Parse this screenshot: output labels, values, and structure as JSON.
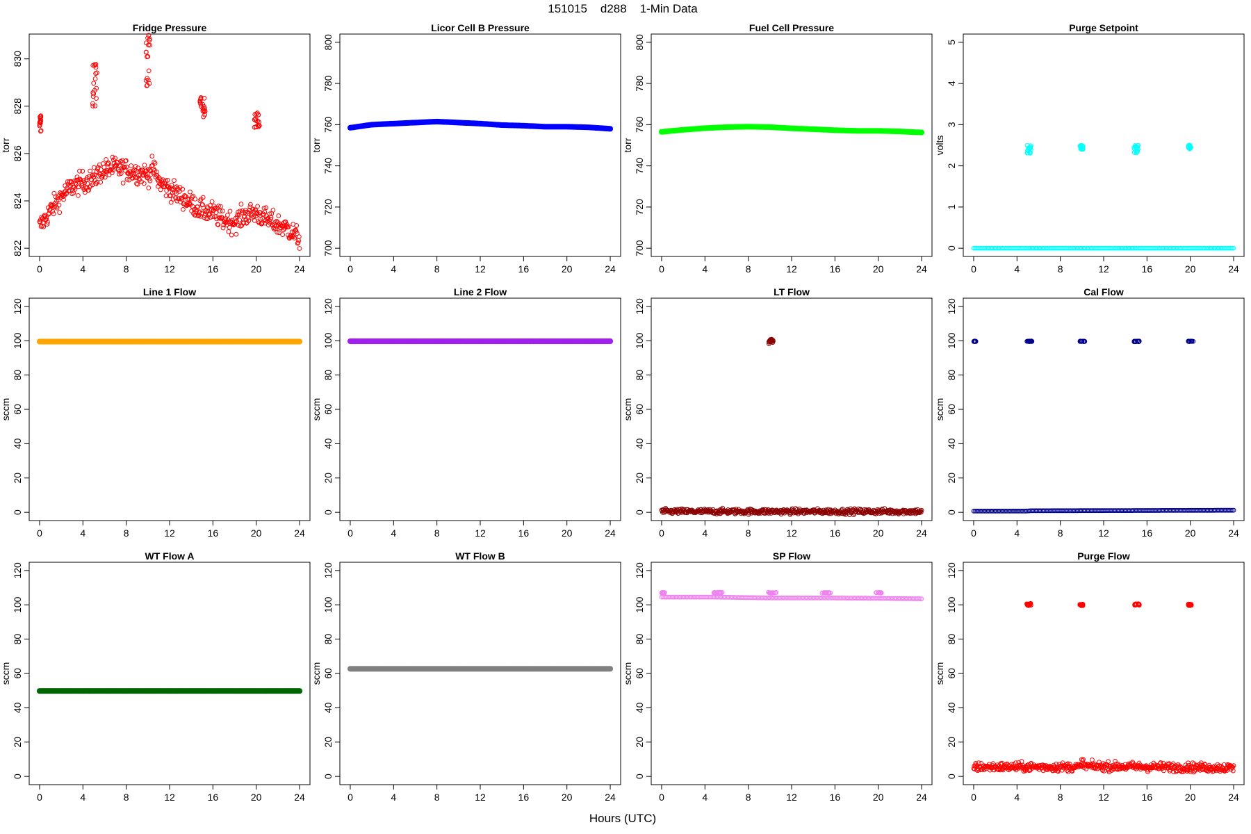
{
  "title": "151015    d288    1-Min Data",
  "xlabel": "Hours (UTC)",
  "chart_data": [
    {
      "type": "scatter",
      "title": "Fridge Pressure",
      "ylabel": "torr",
      "color": "#ff0000",
      "marker": "open-circle",
      "xlim": [
        0,
        24
      ],
      "ylim": [
        822,
        830.7
      ],
      "xticks": [
        0,
        4,
        8,
        12,
        16,
        20,
        24
      ],
      "yticks": [
        822,
        824,
        826,
        828,
        830
      ],
      "shape": "bands",
      "baseline": [
        [
          0,
          822.9
        ],
        [
          1,
          823.6
        ],
        [
          2,
          824.2
        ],
        [
          3,
          824.6
        ],
        [
          4,
          824.8
        ],
        [
          5,
          824.9
        ],
        [
          5.5,
          825.2
        ],
        [
          6,
          825.3
        ],
        [
          7,
          825.4
        ],
        [
          8,
          825.3
        ],
        [
          9,
          825.2
        ],
        [
          10,
          825.1
        ],
        [
          10.5,
          825.4
        ],
        [
          11,
          824.8
        ],
        [
          12,
          824.5
        ],
        [
          13,
          824.2
        ],
        [
          14,
          823.9
        ],
        [
          15,
          823.6
        ],
        [
          16,
          823.5
        ],
        [
          17,
          823.2
        ],
        [
          18,
          823.1
        ],
        [
          19,
          823.4
        ],
        [
          20,
          823.5
        ],
        [
          21,
          823.2
        ],
        [
          22,
          823.0
        ],
        [
          23,
          822.8
        ],
        [
          24,
          822.4
        ]
      ],
      "noise": 0.45,
      "clusters": [
        {
          "x": [
            0,
            0.15
          ],
          "y": [
            826.8,
            827.6
          ]
        },
        {
          "x": [
            4.9,
            5.3
          ],
          "y": [
            828.0,
            829.8
          ]
        },
        {
          "x": [
            9.8,
            10.2
          ],
          "y": [
            828.6,
            831.0
          ]
        },
        {
          "x": [
            14.8,
            15.3
          ],
          "y": [
            827.5,
            828.4
          ]
        },
        {
          "x": [
            19.8,
            20.3
          ],
          "y": [
            827.1,
            827.8
          ]
        }
      ]
    },
    {
      "type": "scatter",
      "title": "Licor Cell B Pressure",
      "ylabel": "torr",
      "color": "#0000ff",
      "marker": "filled-circle",
      "xlim": [
        0,
        24
      ],
      "ylim": [
        700,
        800
      ],
      "xticks": [
        0,
        4,
        8,
        12,
        16,
        20,
        24
      ],
      "yticks": [
        700,
        720,
        740,
        760,
        780,
        800
      ],
      "shape": "line",
      "baseline": [
        [
          0,
          758.5
        ],
        [
          2,
          760
        ],
        [
          4,
          760.5
        ],
        [
          6,
          761
        ],
        [
          8,
          761.5
        ],
        [
          10,
          761
        ],
        [
          12,
          760.5
        ],
        [
          14,
          759.8
        ],
        [
          16,
          759.5
        ],
        [
          18,
          759
        ],
        [
          20,
          759
        ],
        [
          22,
          758.7
        ],
        [
          24,
          758
        ]
      ],
      "clusters": []
    },
    {
      "type": "scatter",
      "title": "Fuel Cell Pressure",
      "ylabel": "torr",
      "color": "#00ff00",
      "marker": "filled-circle",
      "xlim": [
        0,
        24
      ],
      "ylim": [
        700,
        800
      ],
      "xticks": [
        0,
        4,
        8,
        12,
        16,
        20,
        24
      ],
      "yticks": [
        700,
        720,
        740,
        760,
        780,
        800
      ],
      "shape": "line",
      "baseline": [
        [
          0,
          756.5
        ],
        [
          2,
          757.5
        ],
        [
          4,
          758.3
        ],
        [
          6,
          758.8
        ],
        [
          8,
          759
        ],
        [
          10,
          758.8
        ],
        [
          12,
          758.2
        ],
        [
          14,
          757.8
        ],
        [
          16,
          757.3
        ],
        [
          18,
          757
        ],
        [
          20,
          757
        ],
        [
          22,
          756.7
        ],
        [
          24,
          756.2
        ]
      ],
      "clusters": []
    },
    {
      "type": "scatter",
      "title": "Purge Setpoint",
      "ylabel": "volts",
      "color": "#00ffff",
      "marker": "open-circle",
      "xlim": [
        0,
        24
      ],
      "ylim": [
        0,
        5
      ],
      "xticks": [
        0,
        4,
        8,
        12,
        16,
        20,
        24
      ],
      "yticks": [
        0,
        1,
        2,
        3,
        4,
        5
      ],
      "shape": "line",
      "baseline": [
        [
          0,
          0
        ],
        [
          24,
          0
        ]
      ],
      "clusters": [
        {
          "x": [
            4.9,
            5.3
          ],
          "y": [
            2.3,
            2.5
          ]
        },
        {
          "x": [
            9.8,
            10.1
          ],
          "y": [
            2.4,
            2.5
          ]
        },
        {
          "x": [
            14.8,
            15.2
          ],
          "y": [
            2.3,
            2.5
          ]
        },
        {
          "x": [
            19.8,
            20.1
          ],
          "y": [
            2.4,
            2.5
          ]
        }
      ]
    },
    {
      "type": "scatter",
      "title": "Line 1 Flow",
      "ylabel": "sccm",
      "color": "#ffa500",
      "marker": "filled-circle",
      "xlim": [
        0,
        24
      ],
      "ylim": [
        0,
        120
      ],
      "xticks": [
        0,
        4,
        8,
        12,
        16,
        20,
        24
      ],
      "yticks": [
        0,
        20,
        40,
        60,
        80,
        100,
        120
      ],
      "shape": "line",
      "baseline": [
        [
          0,
          99.5
        ],
        [
          24,
          99.5
        ]
      ],
      "clusters": []
    },
    {
      "type": "scatter",
      "title": "Line 2 Flow",
      "ylabel": "sccm",
      "color": "#a020f0",
      "marker": "filled-circle",
      "xlim": [
        0,
        24
      ],
      "ylim": [
        0,
        120
      ],
      "xticks": [
        0,
        4,
        8,
        12,
        16,
        20,
        24
      ],
      "yticks": [
        0,
        20,
        40,
        60,
        80,
        100,
        120
      ],
      "shape": "line",
      "baseline": [
        [
          0,
          99.7
        ],
        [
          24,
          99.7
        ]
      ],
      "clusters": []
    },
    {
      "type": "scatter",
      "title": "LT Flow",
      "ylabel": "sccm",
      "color": "#8b0000",
      "marker": "open-circle",
      "xlim": [
        0,
        24
      ],
      "ylim": [
        0,
        120
      ],
      "xticks": [
        0,
        4,
        8,
        12,
        16,
        20,
        24
      ],
      "yticks": [
        0,
        20,
        40,
        60,
        80,
        100,
        120
      ],
      "shape": "bands",
      "baseline": [
        [
          0,
          0.5
        ],
        [
          24,
          0.5
        ]
      ],
      "noise": 1.5,
      "clusters": [
        {
          "x": [
            9.9,
            10.3
          ],
          "y": [
            98,
            101
          ]
        }
      ]
    },
    {
      "type": "scatter",
      "title": "Cal Flow",
      "ylabel": "sccm",
      "color": "#00008b",
      "marker": "open-circle",
      "xlim": [
        0,
        24
      ],
      "ylim": [
        0,
        120
      ],
      "xticks": [
        0,
        4,
        8,
        12,
        16,
        20,
        24
      ],
      "yticks": [
        0,
        20,
        40,
        60,
        80,
        100,
        120
      ],
      "shape": "line",
      "baseline": [
        [
          0,
          0.7
        ],
        [
          4.8,
          0.7
        ],
        [
          5.2,
          0.9
        ],
        [
          24,
          1.2
        ]
      ],
      "clusters": [
        {
          "x": [
            0,
            0.2
          ],
          "y": [
            99.5,
            99.8
          ]
        },
        {
          "x": [
            4.9,
            5.4
          ],
          "y": [
            99.5,
            99.8
          ]
        },
        {
          "x": [
            9.8,
            10.3
          ],
          "y": [
            99.5,
            99.8
          ]
        },
        {
          "x": [
            14.8,
            15.3
          ],
          "y": [
            99.4,
            99.8
          ]
        },
        {
          "x": [
            19.8,
            20.3
          ],
          "y": [
            99.5,
            99.8
          ]
        }
      ]
    },
    {
      "type": "scatter",
      "title": "WT Flow A",
      "ylabel": "sccm",
      "color": "#006400",
      "marker": "filled-circle",
      "xlim": [
        0,
        24
      ],
      "ylim": [
        0,
        120
      ],
      "xticks": [
        0,
        4,
        8,
        12,
        16,
        20,
        24
      ],
      "yticks": [
        0,
        20,
        40,
        60,
        80,
        100,
        120
      ],
      "shape": "line",
      "baseline": [
        [
          0,
          49.8
        ],
        [
          24,
          49.8
        ]
      ],
      "clusters": []
    },
    {
      "type": "scatter",
      "title": "WT Flow B",
      "ylabel": "sccm",
      "color": "#808080",
      "marker": "filled-circle",
      "xlim": [
        0,
        24
      ],
      "ylim": [
        0,
        120
      ],
      "xticks": [
        0,
        4,
        8,
        12,
        16,
        20,
        24
      ],
      "yticks": [
        0,
        20,
        40,
        60,
        80,
        100,
        120
      ],
      "shape": "line",
      "baseline": [
        [
          0,
          62.7
        ],
        [
          24,
          62.7
        ]
      ],
      "clusters": []
    },
    {
      "type": "scatter",
      "title": "SP Flow",
      "ylabel": "sccm",
      "color": "#ee82ee",
      "marker": "open-circle",
      "xlim": [
        0,
        24
      ],
      "ylim": [
        0,
        120
      ],
      "xticks": [
        0,
        4,
        8,
        12,
        16,
        20,
        24
      ],
      "yticks": [
        0,
        20,
        40,
        60,
        80,
        100,
        120
      ],
      "shape": "line",
      "baseline": [
        [
          0,
          104.5
        ],
        [
          5,
          104.5
        ],
        [
          10,
          104
        ],
        [
          15,
          104
        ],
        [
          20,
          103.8
        ],
        [
          24,
          103.5
        ]
      ],
      "clusters": [
        {
          "x": [
            0,
            0.3
          ],
          "y": [
            106.8,
            107.2
          ]
        },
        {
          "x": [
            4.8,
            5.6
          ],
          "y": [
            106.8,
            107.3
          ]
        },
        {
          "x": [
            9.8,
            10.6
          ],
          "y": [
            106.8,
            107.3
          ]
        },
        {
          "x": [
            14.8,
            15.6
          ],
          "y": [
            106.8,
            107.2
          ]
        },
        {
          "x": [
            19.8,
            20.3
          ],
          "y": [
            106.8,
            107.2
          ]
        }
      ]
    },
    {
      "type": "scatter",
      "title": "Purge Flow",
      "ylabel": "sccm",
      "color": "#ff0000",
      "marker": "open-circle",
      "xlim": [
        0,
        24
      ],
      "ylim": [
        0,
        120
      ],
      "xticks": [
        0,
        4,
        8,
        12,
        16,
        20,
        24
      ],
      "yticks": [
        0,
        20,
        40,
        60,
        80,
        100,
        120
      ],
      "shape": "bands",
      "baseline": [
        [
          0,
          5.5
        ],
        [
          9.9,
          5.5
        ],
        [
          10,
          9.5
        ],
        [
          10.2,
          6
        ],
        [
          24,
          5
        ]
      ],
      "noise": 2.5,
      "clusters": [
        {
          "x": [
            4.9,
            5.3
          ],
          "y": [
            99.5,
            100.8
          ]
        },
        {
          "x": [
            9.8,
            10.1
          ],
          "y": [
            99.5,
            100.5
          ]
        },
        {
          "x": [
            14.8,
            15.3
          ],
          "y": [
            99.8,
            100.6
          ]
        },
        {
          "x": [
            19.8,
            20.1
          ],
          "y": [
            99.5,
            100.5
          ]
        }
      ]
    }
  ]
}
